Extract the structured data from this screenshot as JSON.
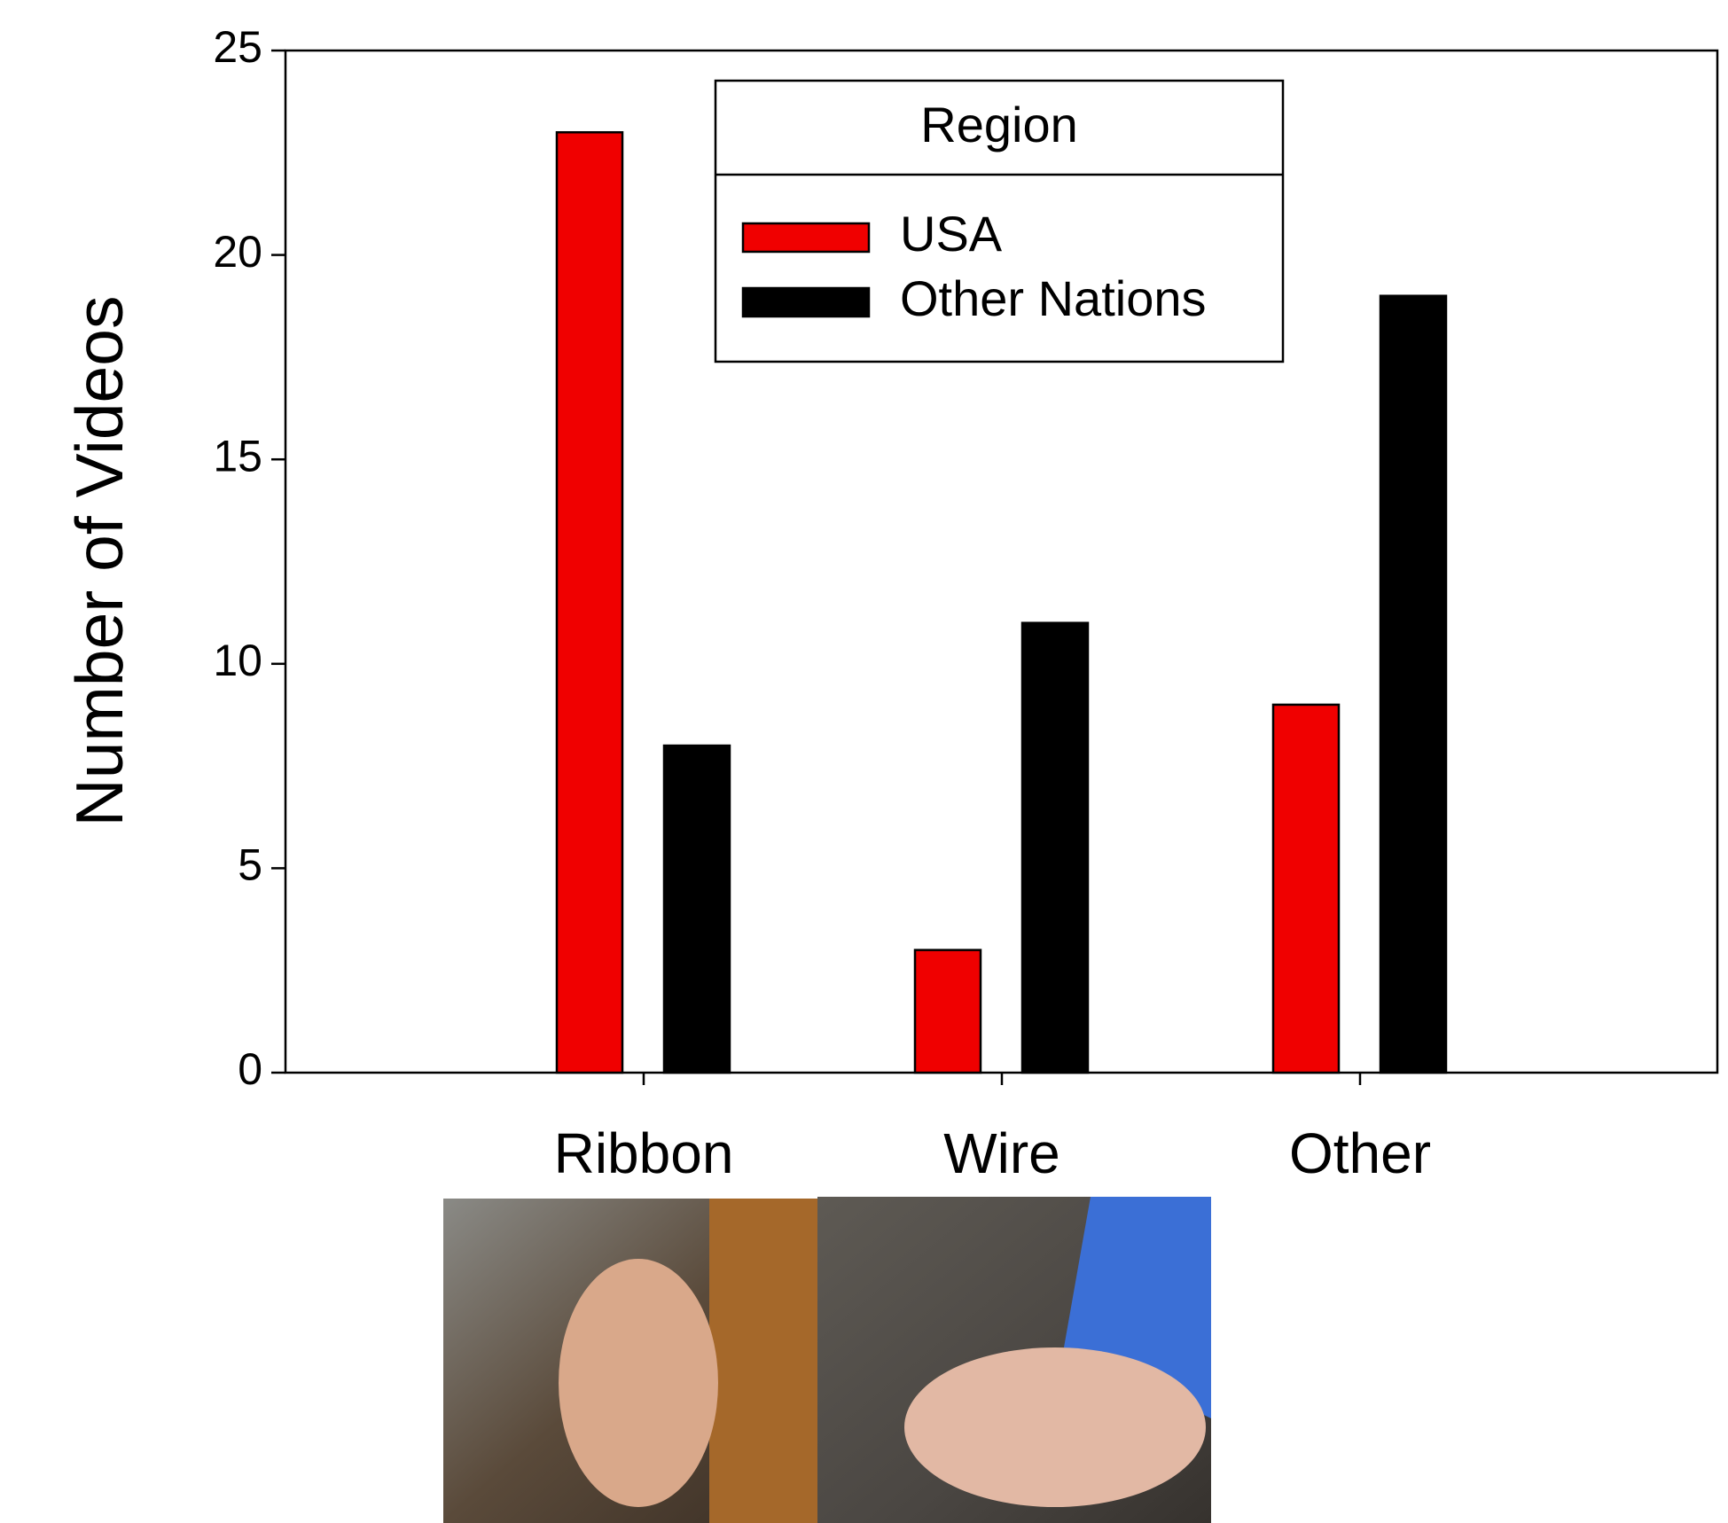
{
  "chart_data": {
    "type": "bar",
    "y_label": "Number of Videos",
    "categories": [
      "Ribbon",
      "Wire",
      "Other"
    ],
    "series": [
      {
        "name": "USA",
        "color": "#f00000",
        "values": [
          23,
          3,
          9
        ]
      },
      {
        "name": "Other Nations",
        "color": "#000000",
        "values": [
          8,
          11,
          19
        ]
      }
    ],
    "ylim": [
      0,
      25
    ],
    "yticks": [
      0,
      5,
      10,
      15,
      20,
      25
    ],
    "legend_title": "Region",
    "legend_position": "top center",
    "grid": false
  }
}
